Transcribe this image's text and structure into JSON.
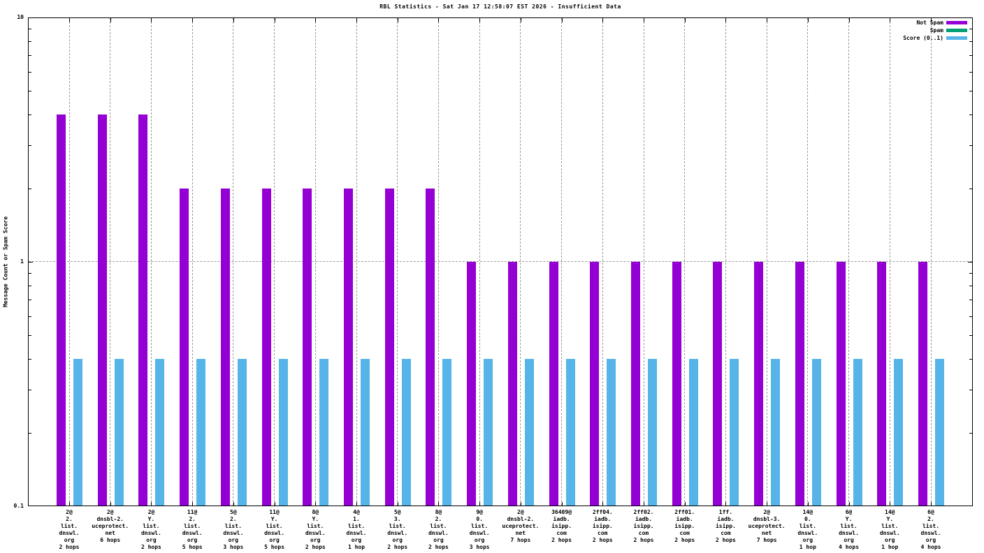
{
  "chart_data": {
    "type": "bar",
    "title": "RBL Statistics - Sat Jan 17 12:58:07 EST 2026 - Insufficient Data",
    "ylabel": "Message Count or Spam Score",
    "yscale": "log",
    "ylim": [
      0.1,
      10
    ],
    "yticks": [
      {
        "value": 10,
        "label": "10"
      },
      {
        "value": 1,
        "label": "1"
      },
      {
        "value": 0.1,
        "label": "0.1"
      }
    ],
    "grid": true,
    "legend_position": "top-right-inside",
    "background_color": "#ffffff",
    "grid_color": "#9a9a9a",
    "categories": [
      [
        "2@",
        "2.",
        "list.",
        "dnswl.",
        "org",
        "2 hops"
      ],
      [
        "2@",
        "dnsbl-2.",
        "uceprotect.",
        "net",
        "6 hops"
      ],
      [
        "2@",
        "Y.",
        "list.",
        "dnswl.",
        "org",
        "2 hops"
      ],
      [
        "11@",
        "2.",
        "list.",
        "dnswl.",
        "org",
        "5 hops"
      ],
      [
        "5@",
        "2.",
        "list.",
        "dnswl.",
        "org",
        "3 hops"
      ],
      [
        "11@",
        "Y.",
        "list.",
        "dnswl.",
        "org",
        "5 hops"
      ],
      [
        "8@",
        "Y.",
        "list.",
        "dnswl.",
        "org",
        "2 hops"
      ],
      [
        "4@",
        "1.",
        "list.",
        "dnswl.",
        "org",
        "1 hop"
      ],
      [
        "5@",
        "3.",
        "list.",
        "dnswl.",
        "org",
        "2 hops"
      ],
      [
        "8@",
        "2.",
        "list.",
        "dnswl.",
        "org",
        "2 hops"
      ],
      [
        "9@",
        "0.",
        "list.",
        "dnswl.",
        "org",
        "3 hops"
      ],
      [
        "2@",
        "dnsbl-2.",
        "uceprotect.",
        "net",
        "7 hops"
      ],
      [
        "36409@",
        "iadb.",
        "isipp.",
        "com",
        "2 hops"
      ],
      [
        "2ff04.",
        "iadb.",
        "isipp.",
        "com",
        "2 hops"
      ],
      [
        "2ff02.",
        "iadb.",
        "isipp.",
        "com",
        "2 hops"
      ],
      [
        "2ff01.",
        "iadb.",
        "isipp.",
        "com",
        "2 hops"
      ],
      [
        "1ff.",
        "iadb.",
        "isipp.",
        "com",
        "2 hops"
      ],
      [
        "2@",
        "dnsbl-3.",
        "uceprotect.",
        "net",
        "7 hops"
      ],
      [
        "14@",
        "0.",
        "list.",
        "dnswl.",
        "org",
        "1 hop"
      ],
      [
        "6@",
        "Y.",
        "list.",
        "dnswl.",
        "org",
        "4 hops"
      ],
      [
        "14@",
        "Y.",
        "list.",
        "dnswl.",
        "org",
        "1 hop"
      ],
      [
        "6@",
        "2.",
        "list.",
        "dnswl.",
        "org",
        "4 hops"
      ]
    ],
    "series": [
      {
        "name": "Not Spam",
        "color": "#9400d3",
        "values": [
          4,
          4,
          4,
          2,
          2,
          2,
          2,
          2,
          2,
          2,
          1,
          1,
          1,
          1,
          1,
          1,
          1,
          1,
          1,
          1,
          1,
          1
        ]
      },
      {
        "name": "Spam",
        "color": "#009e73",
        "values": [
          0,
          0,
          0,
          0,
          0,
          0,
          0,
          0,
          0,
          0,
          0,
          0,
          0,
          0,
          0,
          0,
          0,
          0,
          0,
          0,
          0,
          0
        ]
      },
      {
        "name": "Score (0..1)",
        "color": "#56b4e9",
        "values": [
          0.4,
          0.4,
          0.4,
          0.4,
          0.4,
          0.4,
          0.4,
          0.4,
          0.4,
          0.4,
          0.4,
          0.4,
          0.4,
          0.4,
          0.4,
          0.4,
          0.4,
          0.4,
          0.4,
          0.4,
          0.4,
          0.4
        ]
      }
    ]
  }
}
